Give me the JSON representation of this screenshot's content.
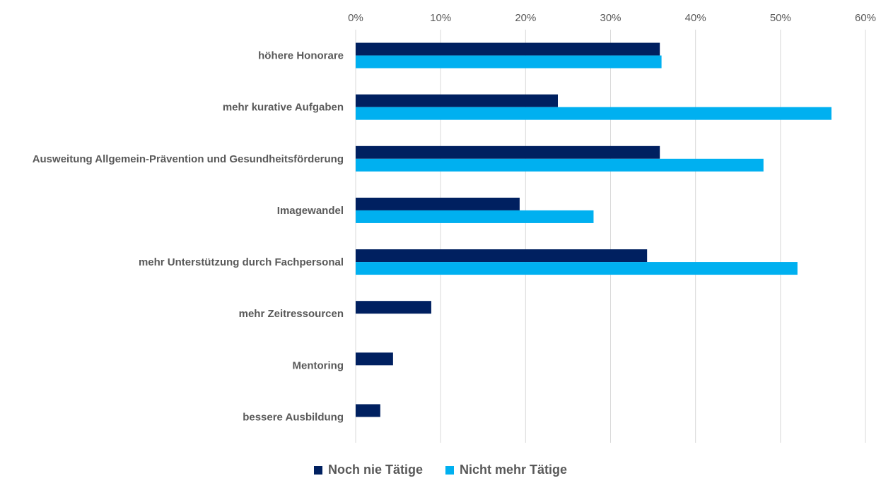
{
  "chart_data": {
    "type": "bar",
    "orientation": "horizontal",
    "title": "",
    "xlabel": "",
    "ylabel": "",
    "xlim": [
      0,
      0.6
    ],
    "x_ticks": [
      "0%",
      "10%",
      "20%",
      "30%",
      "40%",
      "50%",
      "60%"
    ],
    "x_axis_position": "top",
    "grid": true,
    "legend_position": "bottom",
    "categories": [
      "höhere Honorare",
      "mehr kurative Aufgaben",
      "Ausweitung Allgemein-Prävention und Gesundheitsförderung",
      "Imagewandel",
      "mehr Unterstützung durch Fachpersonal",
      "mehr Zeitressourcen",
      "Mentoring",
      "bessere Ausbildung"
    ],
    "series": [
      {
        "name": "Noch nie Tätige",
        "color": "#002060",
        "values": [
          0.358,
          0.238,
          0.358,
          0.193,
          0.343,
          0.089,
          0.044,
          0.029
        ]
      },
      {
        "name": "Nicht mehr Tätige",
        "color": "#00B0F0",
        "values": [
          0.36,
          0.56,
          0.48,
          0.28,
          0.52,
          0,
          0,
          0
        ]
      }
    ]
  }
}
